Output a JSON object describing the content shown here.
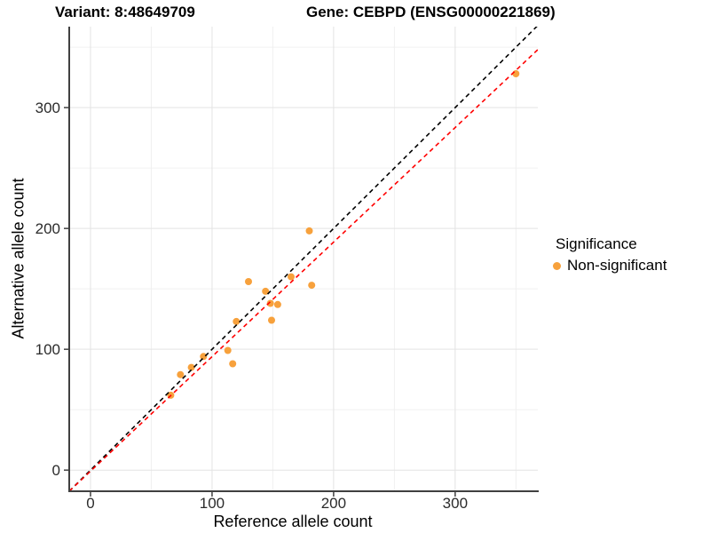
{
  "chart_data": {
    "type": "scatter",
    "title_left": "Variant: 8:48649709",
    "title_right": "Gene: CEBPD (ENSG00000221869)",
    "xlabel": "Reference allele count",
    "ylabel": "Alternative allele count",
    "xlim": [
      -17.5,
      368
    ],
    "ylim": [
      -17.5,
      367
    ],
    "x_major_ticks": [
      0,
      100,
      200,
      300
    ],
    "x_minor_gridlines": [
      50,
      150,
      250,
      350
    ],
    "y_major_ticks": [
      0,
      100,
      200,
      300
    ],
    "y_minor_gridlines": [
      50,
      150,
      250,
      350
    ],
    "grid": "major-and-minor-light-gray-on-white",
    "points": [
      [
        66,
        62
      ],
      [
        74,
        79
      ],
      [
        83,
        85
      ],
      [
        93,
        94
      ],
      [
        113,
        99
      ],
      [
        117,
        88
      ],
      [
        120,
        123
      ],
      [
        130,
        156
      ],
      [
        144,
        148
      ],
      [
        148,
        138
      ],
      [
        149,
        124
      ],
      [
        154,
        137
      ],
      [
        165,
        160
      ],
      [
        180,
        198
      ],
      [
        182,
        153
      ],
      [
        350,
        328
      ]
    ],
    "point_color": "#F7A13C",
    "lines": [
      {
        "name": "identity-line",
        "slope": 1,
        "intercept": 0,
        "style": "dashed",
        "color": "#000000"
      },
      {
        "name": "fit-line",
        "slope": 0.948,
        "intercept": -0.9,
        "style": "dashed",
        "color": "#FF0000"
      }
    ],
    "colors": {
      "major_grid": "#E3E3E3",
      "minor_grid": "#F0F0F0",
      "axis_line": "#404040",
      "tick_text": "#2B2B2B"
    },
    "legend": {
      "title": "Significance",
      "position": "right",
      "items": [
        {
          "label": "Non-significant",
          "color": "#F7A13C"
        }
      ]
    }
  }
}
